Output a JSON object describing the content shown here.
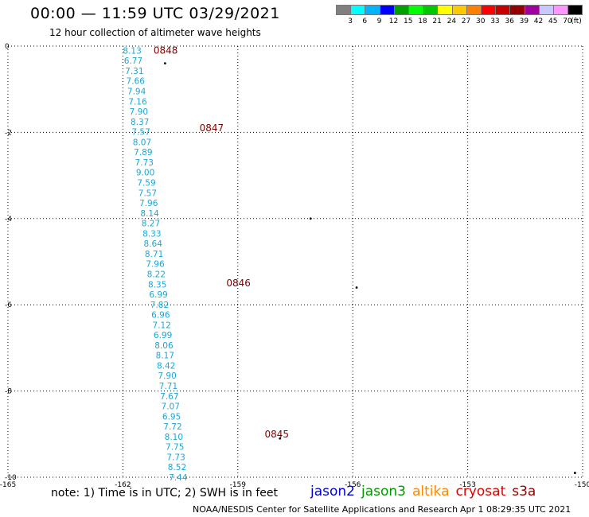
{
  "header": {
    "title": "00:00 — 11:59 UTC 03/29/2021",
    "subtitle": "12 hour collection of altimeter wave heights"
  },
  "legend": {
    "colors": [
      "#808080",
      "#00ffff",
      "#00b4ff",
      "#0000ff",
      "#00a000",
      "#00ff00",
      "#00c800",
      "#ffff00",
      "#ffc800",
      "#ff8000",
      "#ff0000",
      "#c80000",
      "#960000",
      "#a000a0",
      "#c8c8ff",
      "#ff96ff",
      "#000000"
    ],
    "labels": [
      "3",
      "6",
      "9",
      "12",
      "15",
      "18",
      "21",
      "24",
      "27",
      "30",
      "33",
      "36",
      "39",
      "42",
      "45",
      "70"
    ],
    "unit": "(ft)"
  },
  "axes": {
    "x_ticks": [
      "-165",
      "-162",
      "-159",
      "-156",
      "-153",
      "-150"
    ],
    "y_ticks": [
      "0",
      "-2",
      "-4",
      "-6",
      "-8",
      "-10"
    ],
    "x_range": [
      -165,
      -150
    ],
    "y_range": [
      -10,
      0
    ],
    "grid": true
  },
  "track": {
    "color": "#1aa7d6",
    "values": [
      "8.13",
      "6.77",
      "7.31",
      "7.66",
      "7.94",
      "7.16",
      "7.90",
      "8.37",
      "7.57",
      "8.07",
      "7.89",
      "7.73",
      "9.00",
      "7.59",
      "7.57",
      "7.96",
      "8.14",
      "8.27",
      "8.33",
      "8.64",
      "8.71",
      "7.96",
      "8.22",
      "8.35",
      "6.99",
      "7.82",
      "6.96",
      "7.12",
      "6.99",
      "8.06",
      "8.17",
      "8.42",
      "7.90",
      "7.71",
      "7.67",
      "7.07",
      "6.95",
      "7.72",
      "8.10",
      "7.75",
      "7.73",
      "8.52",
      "7.44"
    ],
    "lon_start": -162.0,
    "lat_start": -0.1,
    "lon_end": -160.8,
    "lat_end": -10.0
  },
  "time_labels": {
    "color": "#800000",
    "items": [
      {
        "text": "0848",
        "lon": -161.2,
        "lat": -0.1
      },
      {
        "text": "0847",
        "lon": -160.0,
        "lat": -1.9
      },
      {
        "text": "0846",
        "lon": -159.3,
        "lat": -5.5
      },
      {
        "text": "0845",
        "lon": -158.3,
        "lat": -9.0
      }
    ]
  },
  "footer": {
    "note": "note: 1) Time is in UTC; 2) SWH is in feet",
    "satellites": [
      {
        "name": "jason2",
        "color": "#0000dd"
      },
      {
        "name": "jason3",
        "color": "#009900"
      },
      {
        "name": "altika",
        "color": "#ff8800"
      },
      {
        "name": "cryosat",
        "color": "#dd0000"
      },
      {
        "name": "s3a",
        "color": "#990000"
      }
    ],
    "credit": "NOAA/NESDIS Center for Satellite Applications and Research",
    "timestamp": "Apr  1 08:29:35 UTC 2021"
  }
}
